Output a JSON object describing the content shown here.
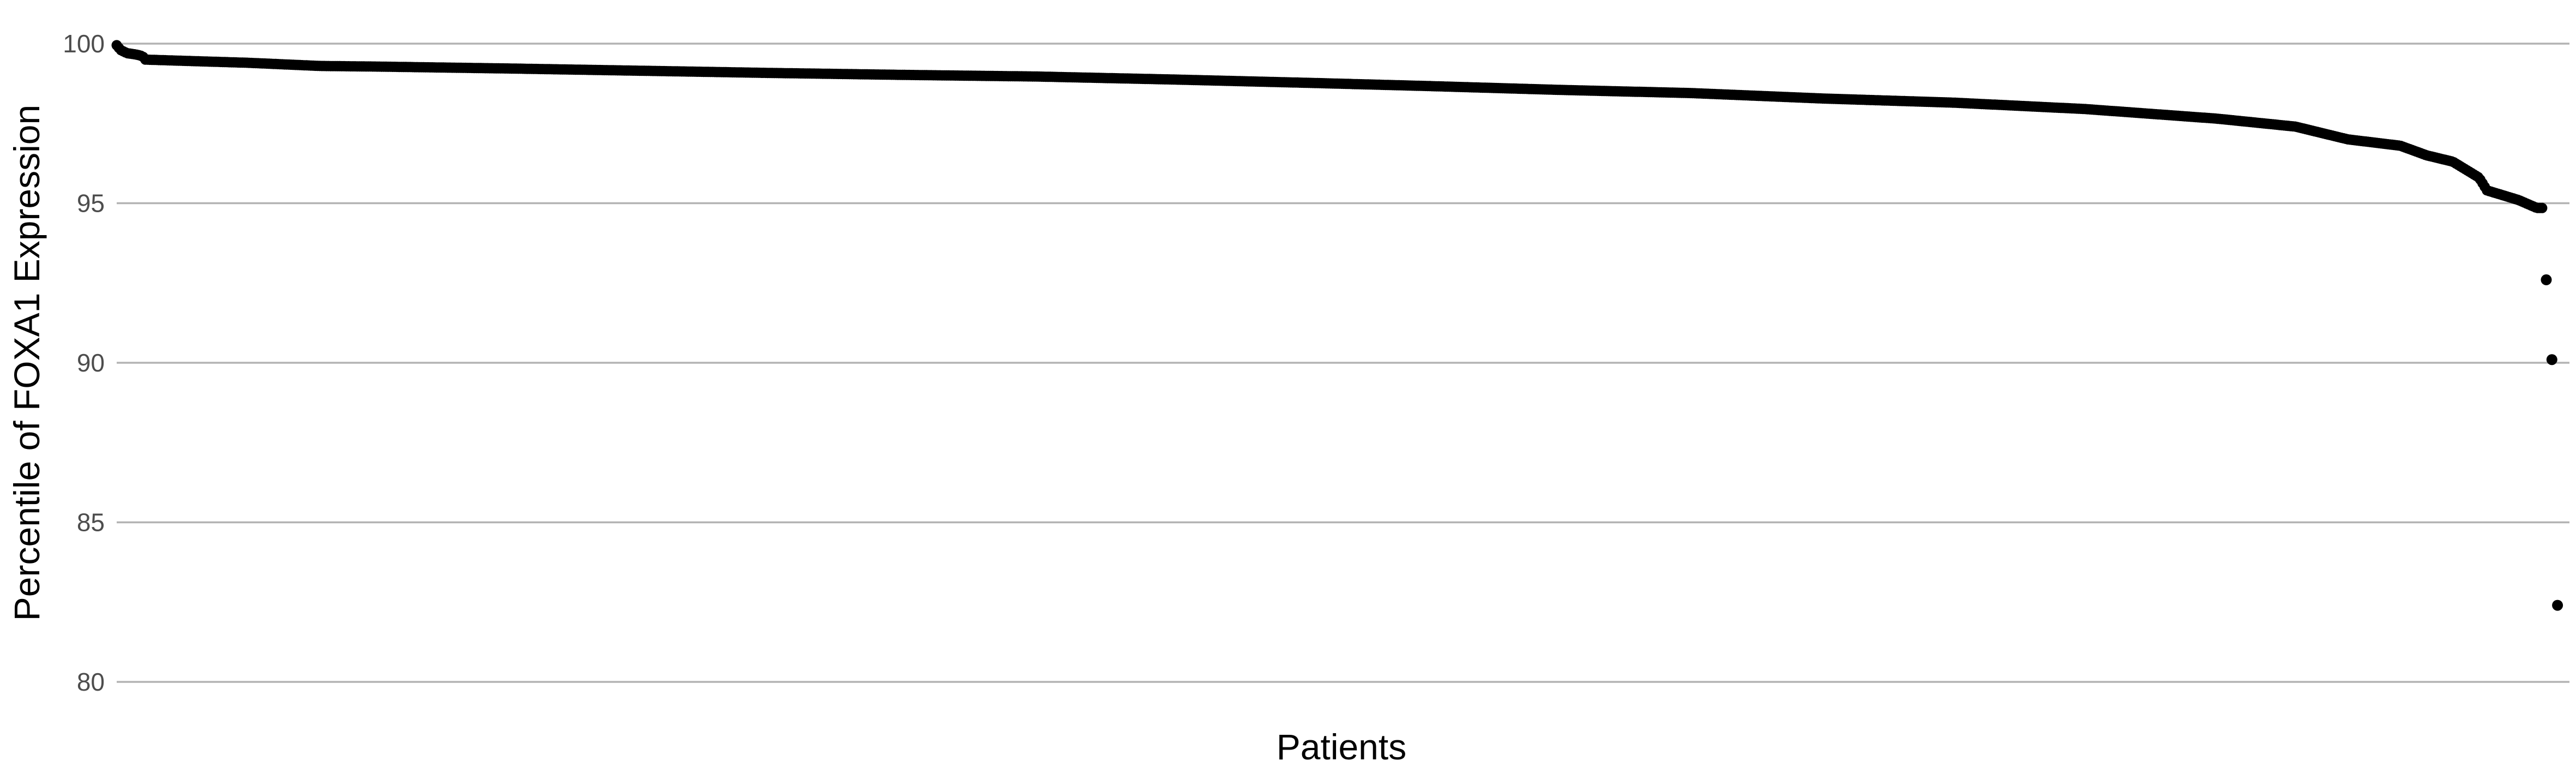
{
  "chart_data": {
    "type": "scatter",
    "title": "",
    "xlabel": "Patients",
    "ylabel": "Percentile of FOXA1 Expression",
    "ylim": [
      80,
      100.6
    ],
    "yticks": [
      100,
      95,
      90,
      85,
      80
    ],
    "grid": true,
    "point_color": "#000000",
    "n_points": 1100,
    "profile": [
      [
        0,
        99.95
      ],
      [
        1,
        99.9
      ],
      [
        3,
        99.8
      ],
      [
        8,
        99.7
      ],
      [
        16,
        99.65
      ],
      [
        20,
        99.6
      ],
      [
        21,
        99.5
      ],
      [
        60,
        99.45
      ],
      [
        100,
        99.4
      ],
      [
        155,
        99.3
      ],
      [
        200,
        99.28
      ],
      [
        300,
        99.22
      ],
      [
        400,
        99.15
      ],
      [
        500,
        99.08
      ],
      [
        600,
        99.02
      ],
      [
        700,
        98.97
      ],
      [
        800,
        98.88
      ],
      [
        900,
        98.78
      ],
      [
        1000,
        98.67
      ],
      [
        1100,
        98.55
      ],
      [
        1200,
        98.45
      ],
      [
        1300,
        98.28
      ],
      [
        1400,
        98.15
      ],
      [
        1500,
        97.95
      ],
      [
        1600,
        97.65
      ],
      [
        1660,
        97.4
      ],
      [
        1700,
        97.0
      ],
      [
        1740,
        96.8
      ],
      [
        1760,
        96.5
      ],
      [
        1780,
        96.3
      ],
      [
        1800,
        95.8
      ],
      [
        1806,
        95.4
      ],
      [
        1830,
        95.1
      ],
      [
        1844,
        94.85
      ]
    ],
    "outliers": [
      {
        "x": 0.9932,
        "y": 92.6
      },
      {
        "x": 0.9955,
        "y": 90.1
      },
      {
        "x": 0.9978,
        "y": 82.4
      }
    ],
    "profile_x_max": 1848
  }
}
